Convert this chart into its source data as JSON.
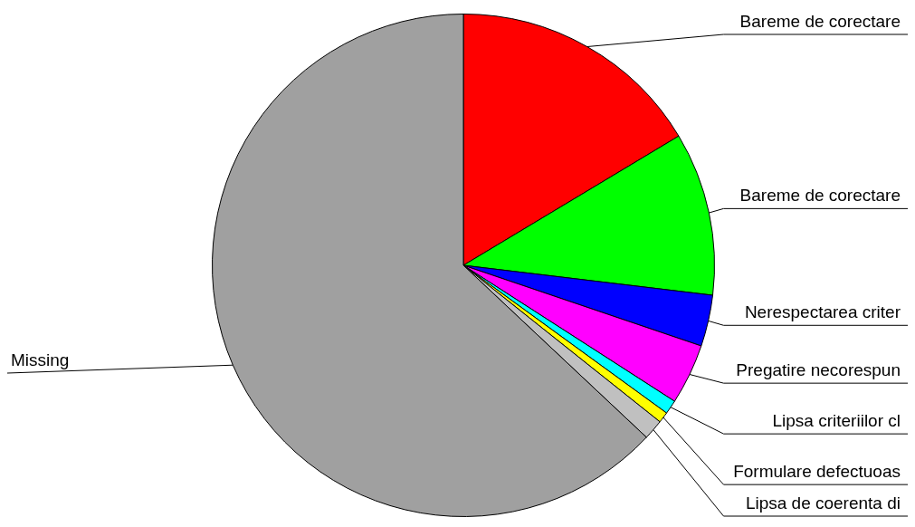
{
  "chart_data": {
    "type": "pie",
    "categories": [
      "Bareme de corectare",
      "Bareme de corectare",
      "Nerespectarea criter",
      "Pregatire necorespun",
      "Lipsa criteriilor cl",
      "Formulare defectuoas",
      "Lipsa de coerenta di",
      "Missing"
    ],
    "values": [
      16.4,
      10.5,
      3.3,
      3.9,
      0.9,
      0.7,
      1.3,
      63.0
    ],
    "colors": [
      "#ff0000",
      "#00ff00",
      "#0000ff",
      "#ff00ff",
      "#00ffff",
      "#ffff00",
      "#c0c0c0",
      "#a0a0a0"
    ],
    "legend": false
  }
}
